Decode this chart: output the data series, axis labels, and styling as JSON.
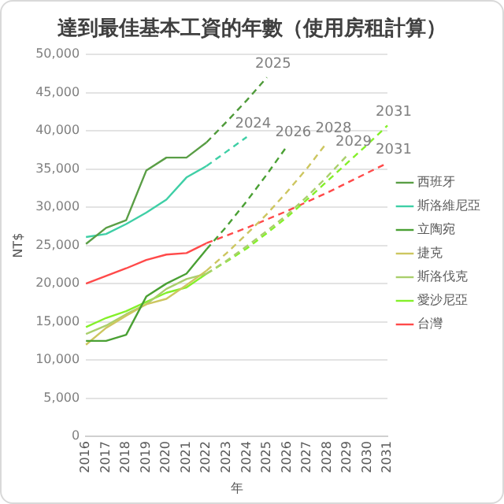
{
  "chart_data": {
    "type": "line",
    "title": "達到最佳基本工資的年數（使用房租計算）",
    "xlabel": "年",
    "ylabel": "NT$",
    "categories": [
      "2016",
      "2017",
      "2018",
      "2019",
      "2020",
      "2021",
      "2022",
      "2023",
      "2024",
      "2025",
      "2026",
      "2027",
      "2028",
      "2029",
      "2030",
      "2031"
    ],
    "ylim": [
      0,
      50000
    ],
    "yticks": [
      {
        "value": 0,
        "label": "0"
      },
      {
        "value": 5000,
        "label": "5,000"
      },
      {
        "value": 10000,
        "label": "10,000"
      },
      {
        "value": 15000,
        "label": "15,000"
      },
      {
        "value": 20000,
        "label": "20,000"
      },
      {
        "value": 25000,
        "label": "25,000"
      },
      {
        "value": 30000,
        "label": "30,000"
      },
      {
        "value": 35000,
        "label": "35,000"
      },
      {
        "value": 40000,
        "label": "40,000"
      },
      {
        "value": 45000,
        "label": "45,000"
      },
      {
        "value": 50000,
        "label": "50,000"
      }
    ],
    "grid": "y",
    "legend": "right",
    "marker": "none",
    "line_style": "solid",
    "series": [
      {
        "name": "西班牙",
        "color": "#5a9e46",
        "values": [
          25200,
          27300,
          28300,
          34800,
          36500,
          36500,
          38500,
          null,
          null,
          null,
          null,
          null,
          null,
          null,
          null,
          null
        ]
      },
      {
        "name": "斯洛維尼亞",
        "color": "#3fcfa6",
        "values": [
          26100,
          26500,
          27800,
          29300,
          31000,
          33900,
          35400,
          null,
          null,
          null,
          null,
          null,
          null,
          null,
          null,
          null
        ]
      },
      {
        "name": "立陶宛",
        "color": "#4aa034",
        "values": [
          12500,
          12500,
          13300,
          18300,
          20000,
          21300,
          24500,
          null,
          null,
          null,
          null,
          null,
          null,
          null,
          null,
          null
        ]
      },
      {
        "name": "捷克",
        "color": "#cdc660",
        "values": [
          12000,
          14200,
          15800,
          17300,
          18000,
          19800,
          21700,
          null,
          null,
          null,
          null,
          null,
          null,
          null,
          null,
          null
        ]
      },
      {
        "name": "斯洛伐克",
        "color": "#a9cf6c",
        "values": [
          13400,
          14500,
          16000,
          17300,
          19300,
          20600,
          21300,
          null,
          null,
          null,
          null,
          null,
          null,
          null,
          null,
          null
        ]
      },
      {
        "name": "愛沙尼亞",
        "color": "#84f02a",
        "values": [
          14300,
          15500,
          16400,
          17600,
          18800,
          19500,
          21300,
          null,
          null,
          null,
          null,
          null,
          null,
          null,
          null,
          null
        ]
      },
      {
        "name": "台灣",
        "color": "#ff4a4a",
        "values": [
          20000,
          21000,
          22000,
          23100,
          23800,
          24000,
          25300,
          null,
          null,
          null,
          null,
          null,
          null,
          null,
          null,
          null
        ]
      },
      {
        "type": "line",
        "line_style": "dashed",
        "color": "#4f9a3a",
        "values": [
          null,
          null,
          null,
          null,
          null,
          null,
          38500,
          41200,
          44000,
          47000,
          null,
          null,
          null,
          null,
          null,
          null
        ]
      },
      {
        "type": "line",
        "line_style": "dashed",
        "color": "#3fcfa6",
        "values": [
          null,
          null,
          null,
          null,
          null,
          null,
          35400,
          37300,
          39200,
          null,
          null,
          null,
          null,
          null,
          null,
          null
        ]
      },
      {
        "type": "line",
        "line_style": "dashed",
        "color": "#4aa034",
        "values": [
          null,
          null,
          null,
          null,
          null,
          null,
          24500,
          27500,
          30800,
          34300,
          38000,
          null,
          null,
          null,
          null,
          null
        ]
      },
      {
        "type": "line",
        "line_style": "dashed",
        "color": "#cdc660",
        "values": [
          null,
          null,
          null,
          null,
          null,
          null,
          21700,
          24000,
          26500,
          29100,
          32000,
          35100,
          38500,
          null,
          null,
          null
        ]
      },
      {
        "type": "line",
        "line_style": "dashed",
        "color": "#a9cf6c",
        "values": [
          null,
          null,
          null,
          null,
          null,
          null,
          21300,
          23000,
          24900,
          26900,
          29000,
          31400,
          34000,
          36800,
          null,
          null
        ]
      },
      {
        "type": "line",
        "line_style": "dashed",
        "color": "#84f02a",
        "values": [
          null,
          null,
          null,
          null,
          null,
          null,
          21300,
          22900,
          24600,
          26600,
          28700,
          31000,
          33400,
          35800,
          38200,
          40700
        ]
      },
      {
        "type": "line",
        "line_style": "dashed",
        "color": "#ff4a4a",
        "values": [
          null,
          null,
          null,
          null,
          null,
          null,
          25300,
          26300,
          27300,
          28400,
          29500,
          30700,
          31900,
          33200,
          34500,
          35800
        ]
      }
    ],
    "annotations": [
      {
        "text": "2025",
        "x": "2025",
        "y": 47000
      },
      {
        "text": "2024",
        "x": "2024",
        "y": 39200
      },
      {
        "text": "2026",
        "x": "2026",
        "y": 38000
      },
      {
        "text": "2028",
        "x": "2028",
        "y": 38500
      },
      {
        "text": "2029",
        "x": "2029",
        "y": 36800
      },
      {
        "text": "2031",
        "x": "2031",
        "y": 40700
      },
      {
        "text": "2031",
        "x": "2031",
        "y": 35800
      }
    ]
  }
}
